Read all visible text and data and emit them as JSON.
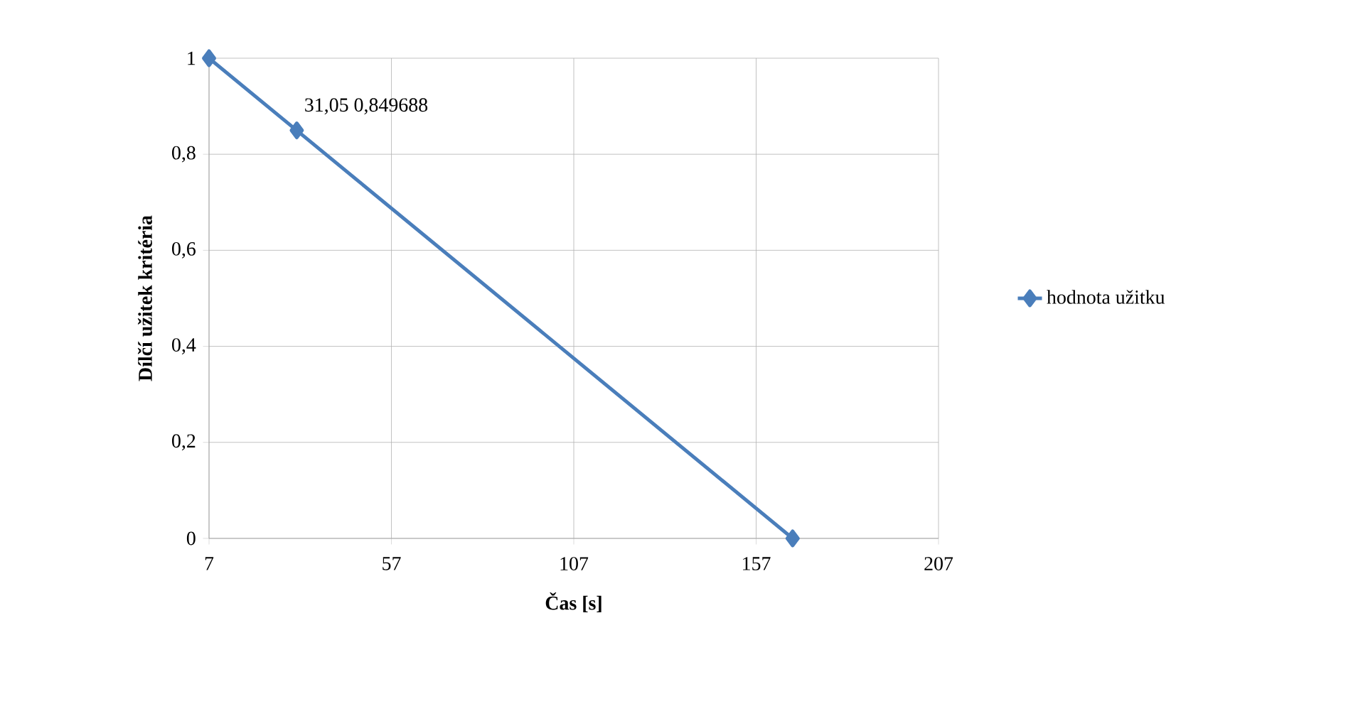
{
  "chart_data": {
    "type": "line",
    "xlabel": "Čas [s]",
    "ylabel": "Dílčí užitek kritéria",
    "x": [
      7,
      31.05,
      167
    ],
    "series": [
      {
        "name": "hodnota užitku",
        "color": "#4a7ebb",
        "values": [
          1,
          0.849688,
          0
        ]
      }
    ],
    "xlim": [
      7,
      207
    ],
    "xticks": [
      7,
      57,
      107,
      157,
      207
    ],
    "ylim": [
      0,
      1
    ],
    "yticks": [
      0,
      {
        "value": 0.2,
        "label": "0,2"
      },
      {
        "value": 0.4,
        "label": "0,4"
      },
      {
        "value": 0.6,
        "label": "0,6"
      },
      {
        "value": 0.8,
        "label": "0,8"
      },
      1
    ],
    "annotations": [
      {
        "text": "31,05 0,849688",
        "x": 31.05,
        "y": 0.849688
      }
    ],
    "grid": true,
    "legend": "right",
    "marker": "diamond",
    "line_style": "solid"
  }
}
